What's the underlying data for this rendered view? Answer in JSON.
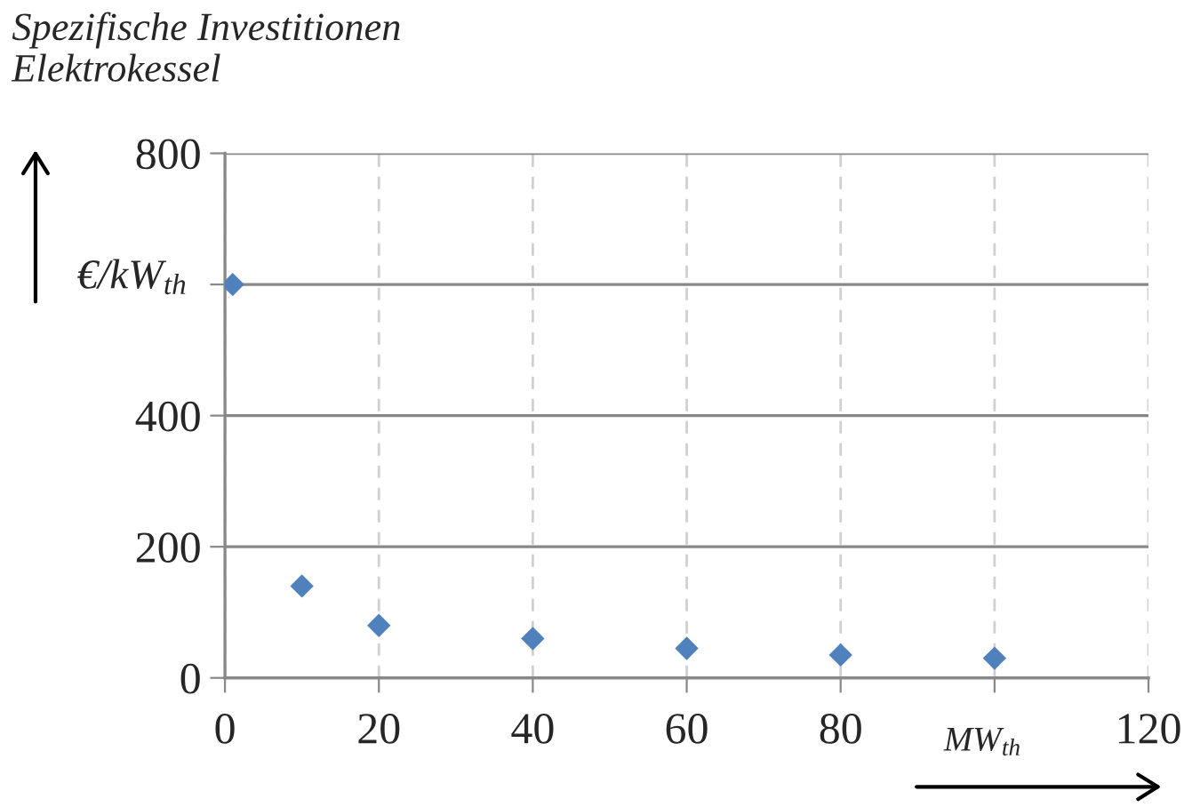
{
  "chart_data": {
    "type": "scatter",
    "title": "Spezifische Investitionen\nElektrokessel",
    "x": [
      1,
      10,
      20,
      40,
      60,
      80,
      100
    ],
    "series": [
      {
        "color": "#4f81bd",
        "values": [
          600,
          140,
          80,
          60,
          45,
          35,
          30
        ]
      }
    ],
    "xlabel": "MW$_{th}$",
    "ylabel": "€/kW$_{th}$",
    "xlim": [
      0,
      120
    ],
    "xticks": [
      0,
      20,
      40,
      60,
      80,
      {
        "value": 100,
        "label": null
      },
      120
    ],
    "ylim": [
      0,
      800
    ],
    "yticks": [
      0,
      200,
      400,
      {
        "value": 600,
        "label": null
      },
      800
    ],
    "grid": true,
    "marker": "diamond"
  }
}
